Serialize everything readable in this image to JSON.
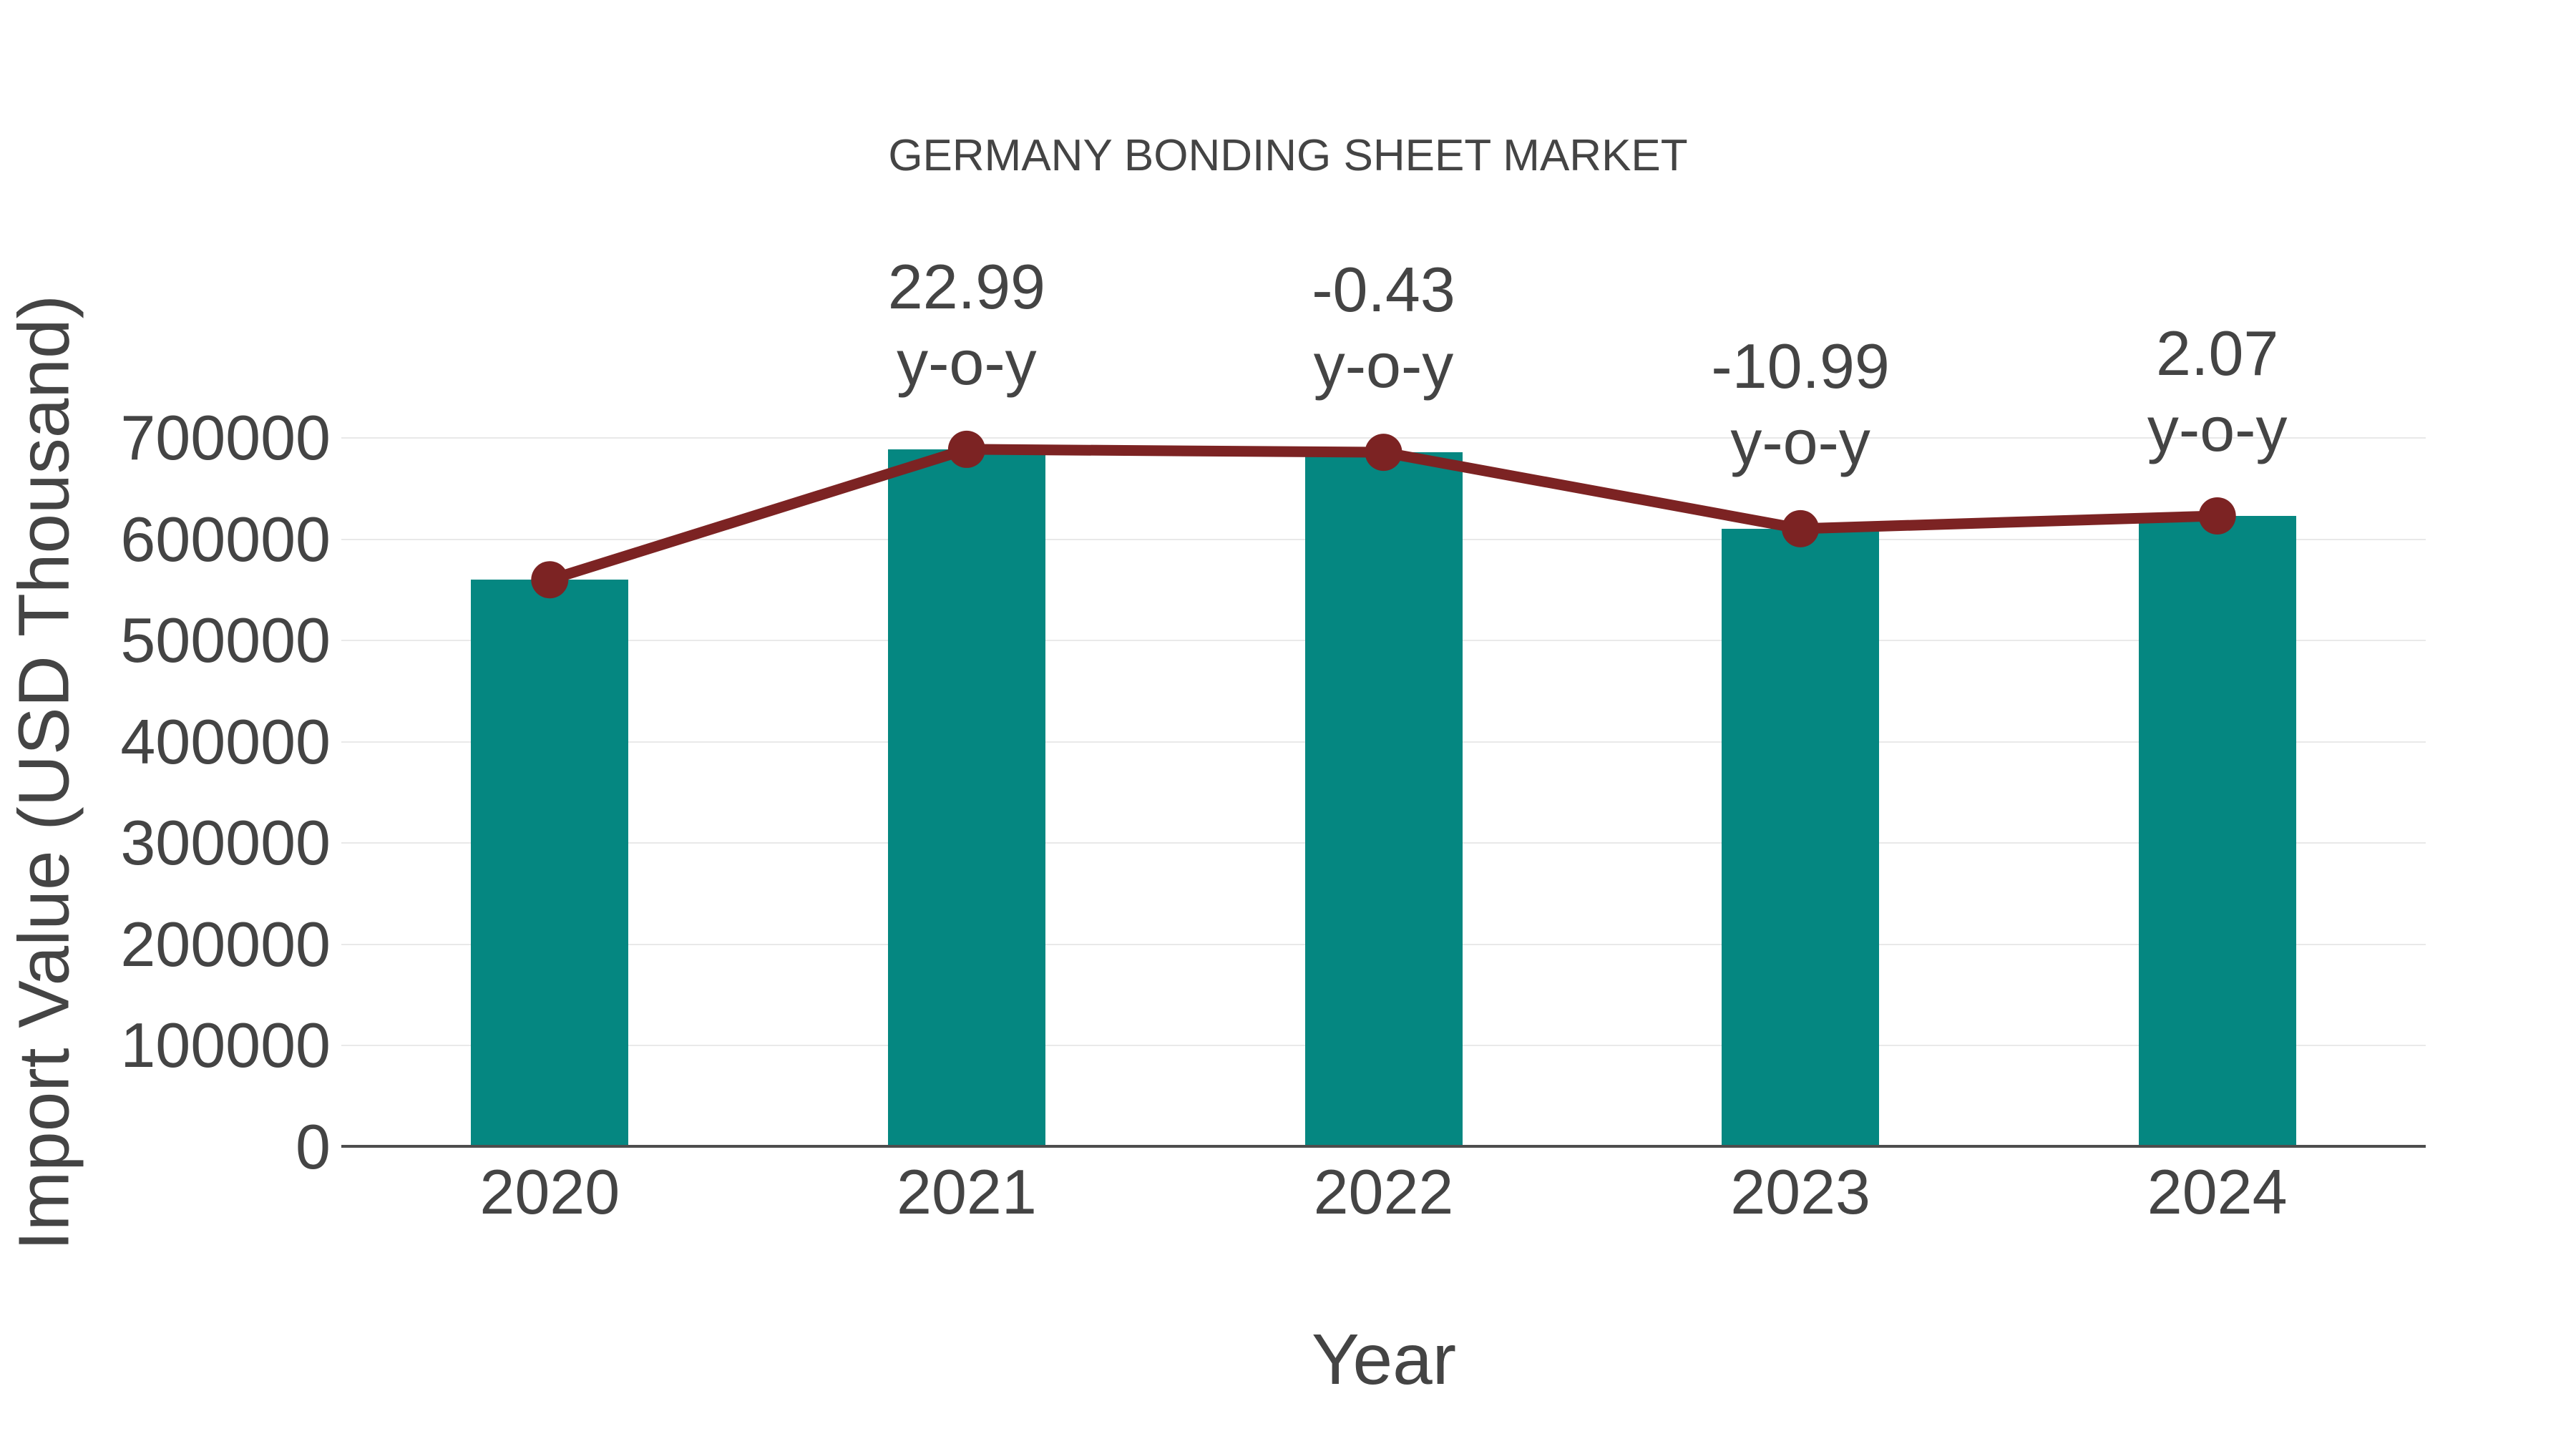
{
  "chart_data": {
    "type": "bar",
    "title": "GERMANY BONDING SHEET MARKET",
    "xlabel": "Year",
    "ylabel": "Import Value (USD Thousand)",
    "categories": [
      "2020",
      "2021",
      "2022",
      "2023",
      "2024"
    ],
    "series": [
      {
        "name": "Import Value bars",
        "type": "bar",
        "values": [
          560000,
          688744,
          685782,
          610415,
          623050
        ]
      },
      {
        "name": "Import Value trend line",
        "type": "line",
        "values": [
          560000,
          688744,
          685782,
          610415,
          623050
        ]
      }
    ],
    "annotations": [
      {
        "category": "2021",
        "value": "22.99",
        "suffix": "y-o-y"
      },
      {
        "category": "2022",
        "value": "-0.43",
        "suffix": "y-o-y"
      },
      {
        "category": "2023",
        "value": "-10.99",
        "suffix": "y-o-y"
      },
      {
        "category": "2024",
        "value": "2.07",
        "suffix": "y-o-y"
      }
    ],
    "yticks": [
      0,
      100000,
      200000,
      300000,
      400000,
      500000,
      600000,
      700000
    ],
    "ylim": [
      0,
      700000
    ],
    "grid": true,
    "legend_position": "none",
    "colors": {
      "bar": "#058781",
      "line": "#7C2323",
      "grid": "#e9e9e9",
      "axis": "#4d4d4d",
      "text": "#444444",
      "background": "#ffffff"
    }
  }
}
